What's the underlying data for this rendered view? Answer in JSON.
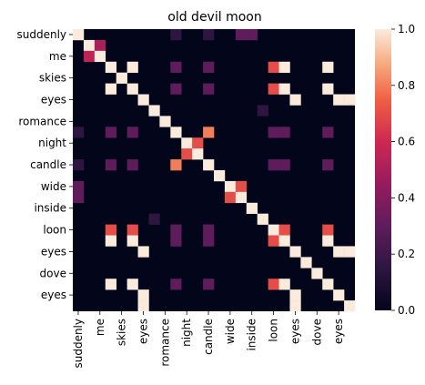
{
  "chart_data": {
    "type": "heatmap",
    "title": "old devil moon",
    "xlabel": "",
    "ylabel": "",
    "labels": [
      "suddenly",
      "",
      "me",
      "",
      "skies",
      "",
      "eyes",
      "",
      "romance",
      "",
      "night",
      "",
      "candle",
      "",
      "wide",
      "",
      "inside",
      "",
      "loon",
      "",
      "eyes",
      "",
      "dove",
      "",
      "eyes",
      ""
    ],
    "tick_labels": [
      "suddenly",
      "me",
      "skies",
      "eyes",
      "romance",
      "night",
      "candle",
      "wide",
      "inside",
      "loon",
      "eyes",
      "dove",
      "eyes"
    ],
    "colorbar": {
      "min": 0.0,
      "max": 1.0,
      "ticks": [
        "0.0",
        "0.2",
        "0.4",
        "0.6",
        "0.8",
        "1.0"
      ]
    },
    "cells": [
      [
        0,
        0,
        1.0
      ],
      [
        0,
        9,
        0.15
      ],
      [
        0,
        12,
        0.15
      ],
      [
        0,
        15,
        0.3
      ],
      [
        0,
        16,
        0.3
      ],
      [
        1,
        1,
        1.0
      ],
      [
        1,
        2,
        0.5
      ],
      [
        2,
        1,
        0.55
      ],
      [
        2,
        2,
        1.0
      ],
      [
        3,
        3,
        1.0
      ],
      [
        3,
        5,
        1.0
      ],
      [
        3,
        9,
        0.3
      ],
      [
        3,
        12,
        0.3
      ],
      [
        3,
        18,
        0.7
      ],
      [
        3,
        19,
        1.0
      ],
      [
        3,
        23,
        1.0
      ],
      [
        4,
        4,
        1.0
      ],
      [
        5,
        3,
        1.0
      ],
      [
        5,
        5,
        1.0
      ],
      [
        5,
        9,
        0.3
      ],
      [
        5,
        12,
        0.3
      ],
      [
        5,
        18,
        0.7
      ],
      [
        5,
        19,
        1.0
      ],
      [
        5,
        23,
        1.0
      ],
      [
        6,
        6,
        1.0
      ],
      [
        6,
        20,
        1.0
      ],
      [
        6,
        24,
        1.0
      ],
      [
        6,
        25,
        1.0
      ],
      [
        7,
        7,
        1.0
      ],
      [
        7,
        17,
        0.15
      ],
      [
        8,
        8,
        1.0
      ],
      [
        9,
        0,
        0.15
      ],
      [
        9,
        3,
        0.3
      ],
      [
        9,
        5,
        0.3
      ],
      [
        9,
        9,
        1.0
      ],
      [
        9,
        12,
        0.8
      ],
      [
        9,
        18,
        0.3
      ],
      [
        9,
        19,
        0.3
      ],
      [
        9,
        23,
        0.3
      ],
      [
        10,
        10,
        1.0
      ],
      [
        10,
        11,
        0.7
      ],
      [
        11,
        10,
        0.7
      ],
      [
        11,
        11,
        1.0
      ],
      [
        12,
        0,
        0.15
      ],
      [
        12,
        3,
        0.3
      ],
      [
        12,
        5,
        0.3
      ],
      [
        12,
        9,
        0.8
      ],
      [
        12,
        12,
        1.0
      ],
      [
        12,
        18,
        0.3
      ],
      [
        12,
        19,
        0.3
      ],
      [
        12,
        23,
        0.3
      ],
      [
        13,
        13,
        1.0
      ],
      [
        14,
        0,
        0.3
      ],
      [
        14,
        14,
        1.0
      ],
      [
        14,
        15,
        0.7
      ],
      [
        15,
        0,
        0.3
      ],
      [
        15,
        14,
        0.7
      ],
      [
        15,
        15,
        1.0
      ],
      [
        16,
        16,
        1.0
      ],
      [
        17,
        7,
        0.15
      ],
      [
        17,
        17,
        1.0
      ],
      [
        18,
        3,
        0.7
      ],
      [
        18,
        5,
        0.7
      ],
      [
        18,
        9,
        0.3
      ],
      [
        18,
        12,
        0.3
      ],
      [
        18,
        18,
        1.0
      ],
      [
        18,
        19,
        0.7
      ],
      [
        18,
        23,
        0.7
      ],
      [
        19,
        3,
        1.0
      ],
      [
        19,
        5,
        1.0
      ],
      [
        19,
        9,
        0.3
      ],
      [
        19,
        12,
        0.3
      ],
      [
        19,
        18,
        0.7
      ],
      [
        19,
        19,
        1.0
      ],
      [
        19,
        23,
        1.0
      ],
      [
        20,
        6,
        1.0
      ],
      [
        20,
        20,
        1.0
      ],
      [
        20,
        24,
        1.0
      ],
      [
        20,
        25,
        1.0
      ],
      [
        21,
        21,
        1.0
      ],
      [
        22,
        22,
        1.0
      ],
      [
        23,
        3,
        1.0
      ],
      [
        23,
        5,
        1.0
      ],
      [
        23,
        9,
        0.3
      ],
      [
        23,
        12,
        0.3
      ],
      [
        23,
        18,
        0.7
      ],
      [
        23,
        19,
        1.0
      ],
      [
        23,
        23,
        1.0
      ],
      [
        24,
        6,
        1.0
      ],
      [
        24,
        20,
        1.0
      ],
      [
        24,
        24,
        1.0
      ],
      [
        25,
        6,
        1.0
      ],
      [
        25,
        20,
        1.0
      ],
      [
        25,
        25,
        1.0
      ]
    ]
  }
}
